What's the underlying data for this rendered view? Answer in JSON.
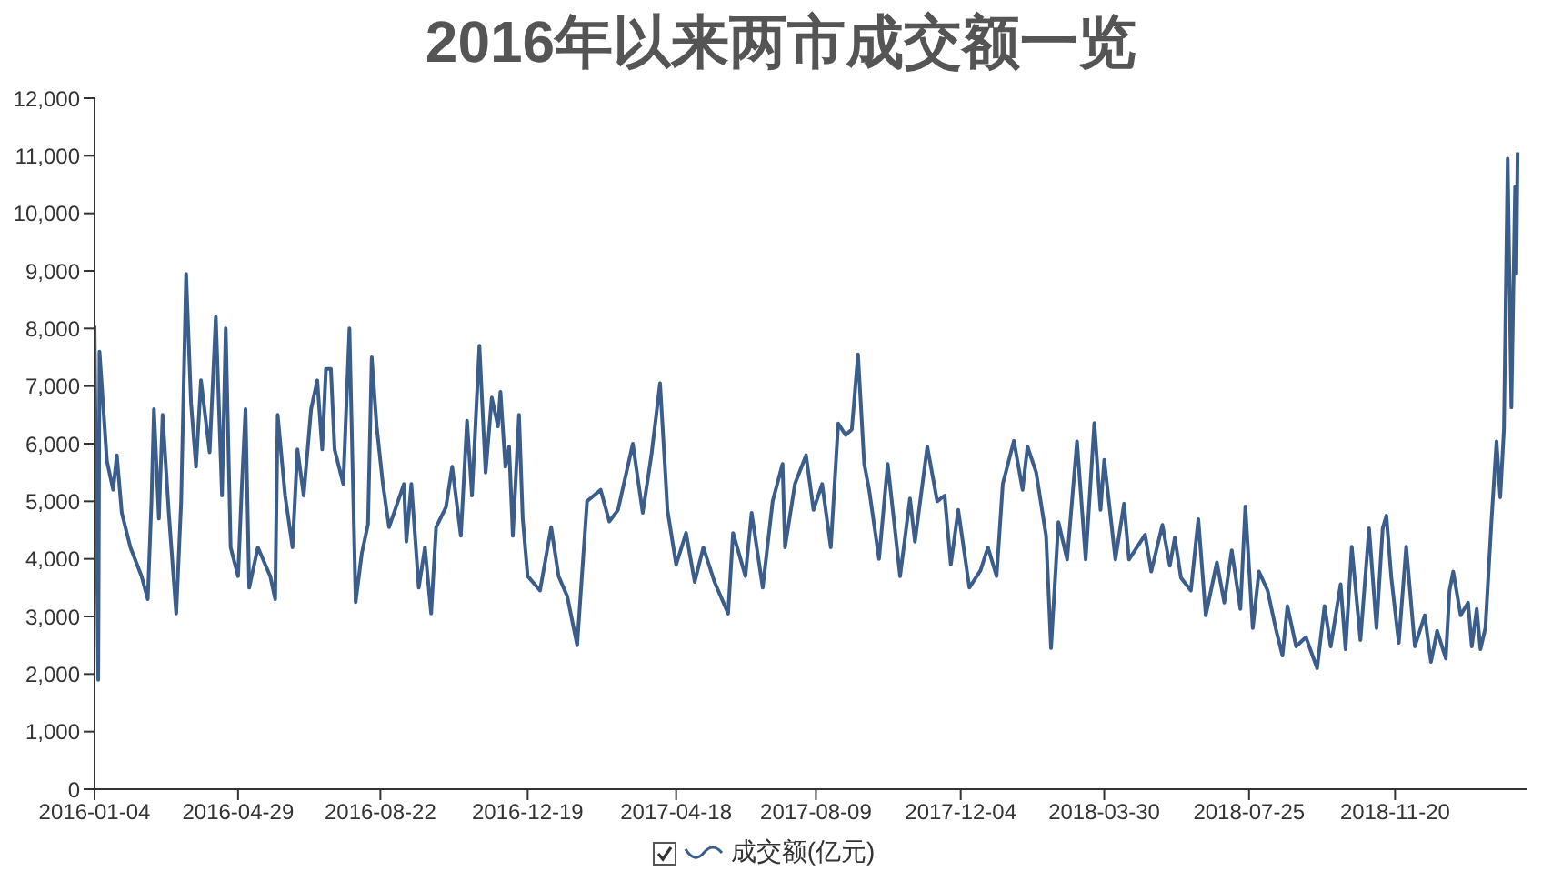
{
  "chart_data": {
    "type": "line",
    "title": "2016年以来两市成交额一览",
    "legend": "bottom",
    "marker": "none",
    "xlim": [
      "2016-01-04",
      "2019-03-07"
    ],
    "xticks": [
      "2016-01-04",
      "2016-04-29",
      "2016-08-22",
      "2016-12-19",
      "2017-04-18",
      "2017-08-09",
      "2017-12-04",
      "2018-03-30",
      "2018-07-25",
      "2018-11-20"
    ],
    "ylim": [
      0,
      12000
    ],
    "yticks": [
      {
        "value": 0,
        "label": "0"
      },
      {
        "value": 1000,
        "label": "1,000"
      },
      {
        "value": 2000,
        "label": "2,000"
      },
      {
        "value": 3000,
        "label": "3,000"
      },
      {
        "value": 4000,
        "label": "4,000"
      },
      {
        "value": 5000,
        "label": "5,000"
      },
      {
        "value": 6000,
        "label": "6,000"
      },
      {
        "value": 7000,
        "label": "7,000"
      },
      {
        "value": 8000,
        "label": "8,000"
      },
      {
        "value": 9000,
        "label": "9,000"
      },
      {
        "value": 10000,
        "label": "10,000"
      },
      {
        "value": 11000,
        "label": "11,000"
      },
      {
        "value": 12000,
        "label": "12,000"
      }
    ],
    "x": [
      "2016-01-04",
      "2016-01-07",
      "2016-01-08",
      "2016-01-14",
      "2016-01-19",
      "2016-01-22",
      "2016-01-26",
      "2016-02-02",
      "2016-02-11",
      "2016-02-16",
      "2016-02-19",
      "2016-02-21",
      "2016-02-25",
      "2016-02-28",
      "2016-03-04",
      "2016-03-10",
      "2016-03-14",
      "2016-03-18",
      "2016-03-22",
      "2016-03-26",
      "2016-03-30",
      "2016-04-06",
      "2016-04-11",
      "2016-04-16",
      "2016-04-19",
      "2016-04-23",
      "2016-04-29",
      "2016-05-02",
      "2016-05-05",
      "2016-05-08",
      "2016-05-15",
      "2016-05-25",
      "2016-05-29",
      "2016-05-31",
      "2016-06-06",
      "2016-06-12",
      "2016-06-16",
      "2016-06-21",
      "2016-06-27",
      "2016-07-02",
      "2016-07-06",
      "2016-07-09",
      "2016-07-13",
      "2016-07-16",
      "2016-07-23",
      "2016-07-28",
      "2016-08-02",
      "2016-08-07",
      "2016-08-12",
      "2016-08-15",
      "2016-08-19",
      "2016-08-24",
      "2016-08-29",
      "2016-09-10",
      "2016-09-12",
      "2016-09-16",
      "2016-09-22",
      "2016-09-27",
      "2016-10-02",
      "2016-10-06",
      "2016-10-14",
      "2016-10-19",
      "2016-10-26",
      "2016-10-31",
      "2016-11-04",
      "2016-11-10",
      "2016-11-15",
      "2016-11-20",
      "2016-11-25",
      "2016-11-27",
      "2016-12-01",
      "2016-12-04",
      "2016-12-07",
      "2016-12-12",
      "2016-12-15",
      "2016-12-19",
      "2016-12-29",
      "2017-01-07",
      "2017-01-13",
      "2017-01-20",
      "2017-01-28",
      "2017-02-05",
      "2017-02-16",
      "2017-02-23",
      "2017-03-02",
      "2017-03-14",
      "2017-03-22",
      "2017-03-29",
      "2017-04-05",
      "2017-04-11",
      "2017-04-18",
      "2017-04-26",
      "2017-05-03",
      "2017-05-10",
      "2017-05-19",
      "2017-05-30",
      "2017-06-03",
      "2017-06-13",
      "2017-06-18",
      "2017-06-27",
      "2017-07-05",
      "2017-07-13",
      "2017-07-15",
      "2017-07-23",
      "2017-08-01",
      "2017-08-07",
      "2017-08-14",
      "2017-08-21",
      "2017-08-27",
      "2017-09-02",
      "2017-09-07",
      "2017-09-12",
      "2017-09-17",
      "2017-09-21",
      "2017-09-29",
      "2017-10-06",
      "2017-10-16",
      "2017-10-24",
      "2017-10-28",
      "2017-11-07",
      "2017-11-15",
      "2017-11-21",
      "2017-11-26",
      "2017-12-02",
      "2017-12-11",
      "2017-12-20",
      "2017-12-26",
      "2018-01-02",
      "2018-01-07",
      "2018-01-16",
      "2018-01-23",
      "2018-01-27",
      "2018-02-03",
      "2018-02-11",
      "2018-02-15",
      "2018-02-21",
      "2018-02-28",
      "2018-03-08",
      "2018-03-15",
      "2018-03-22",
      "2018-03-27",
      "2018-03-30",
      "2018-04-08",
      "2018-04-15",
      "2018-04-19",
      "2018-05-02",
      "2018-05-07",
      "2018-05-16",
      "2018-05-22",
      "2018-05-26",
      "2018-05-31",
      "2018-06-08",
      "2018-06-14",
      "2018-06-20",
      "2018-06-29",
      "2018-07-05",
      "2018-07-11",
      "2018-07-18",
      "2018-07-22",
      "2018-07-28",
      "2018-08-02",
      "2018-08-09",
      "2018-08-16",
      "2018-08-21",
      "2018-08-25",
      "2018-09-01",
      "2018-09-09",
      "2018-09-18",
      "2018-09-24",
      "2018-09-29",
      "2018-10-07",
      "2018-10-11",
      "2018-10-16",
      "2018-10-23",
      "2018-10-30",
      "2018-11-05",
      "2018-11-10",
      "2018-11-13",
      "2018-11-17",
      "2018-11-23",
      "2018-11-29",
      "2018-12-06",
      "2018-12-14",
      "2018-12-19",
      "2018-12-24",
      "2018-12-31",
      "2019-01-03",
      "2019-01-06",
      "2019-01-12",
      "2019-01-18",
      "2019-01-21",
      "2019-01-25",
      "2019-01-28",
      "2019-02-01",
      "2019-02-06",
      "2019-02-10",
      "2019-02-13",
      "2019-02-16",
      "2019-02-19",
      "2019-02-22",
      "2019-02-25",
      "2019-02-26",
      "2019-02-27"
    ],
    "series": [
      {
        "name": "成交额(亿元)",
        "color": "#3a5d8c",
        "values": [
          8050,
          1900,
          7600,
          5700,
          5200,
          5800,
          4800,
          4200,
          3700,
          3300,
          5000,
          6600,
          4700,
          6500,
          4800,
          3050,
          5000,
          8950,
          6700,
          5600,
          7100,
          5850,
          8200,
          5100,
          8000,
          4200,
          3700,
          5250,
          6600,
          3500,
          4200,
          3700,
          3300,
          6500,
          5100,
          4200,
          5900,
          5100,
          6600,
          7100,
          5900,
          7300,
          7300,
          5900,
          5300,
          8000,
          3250,
          4100,
          4600,
          7500,
          6300,
          5300,
          4550,
          5300,
          4300,
          5300,
          3500,
          4200,
          3050,
          4550,
          4900,
          5600,
          4400,
          6400,
          5100,
          7700,
          5500,
          6800,
          6300,
          6900,
          5600,
          5950,
          4400,
          6500,
          4700,
          3700,
          3450,
          4550,
          3700,
          3350,
          2500,
          5000,
          5200,
          4650,
          4850,
          6000,
          4800,
          5800,
          7050,
          4850,
          3900,
          4450,
          3600,
          4200,
          3600,
          3050,
          4450,
          3700,
          4800,
          3500,
          5000,
          5650,
          4200,
          5300,
          5800,
          4850,
          5300,
          4200,
          6350,
          6150,
          6250,
          7550,
          5650,
          5200,
          4000,
          5650,
          3700,
          5050,
          4300,
          5950,
          5000,
          5100,
          3900,
          4850,
          3500,
          3800,
          4200,
          3700,
          5300,
          6050,
          5200,
          5950,
          5500,
          4400,
          2450,
          4640,
          3990,
          6040,
          3990,
          6360,
          4850,
          5720,
          3990,
          4960,
          3990,
          4420,
          3780,
          4590,
          3880,
          4370,
          3670,
          3450,
          4690,
          3020,
          3940,
          3240,
          4150,
          3130,
          4910,
          2800,
          3780,
          3450,
          2750,
          2320,
          3180,
          2480,
          2640,
          2100,
          3180,
          2480,
          3560,
          2430,
          4210,
          2590,
          4530,
          2800,
          4530,
          4750,
          3670,
          2540,
          4210,
          2480,
          3020,
          2210,
          2750,
          2270,
          3450,
          3780,
          3020,
          3240,
          2480,
          3130,
          2430,
          2800,
          4690,
          6040,
          5070,
          6260,
          10950,
          6630,
          10460,
          8950,
          11060
        ]
      }
    ]
  }
}
